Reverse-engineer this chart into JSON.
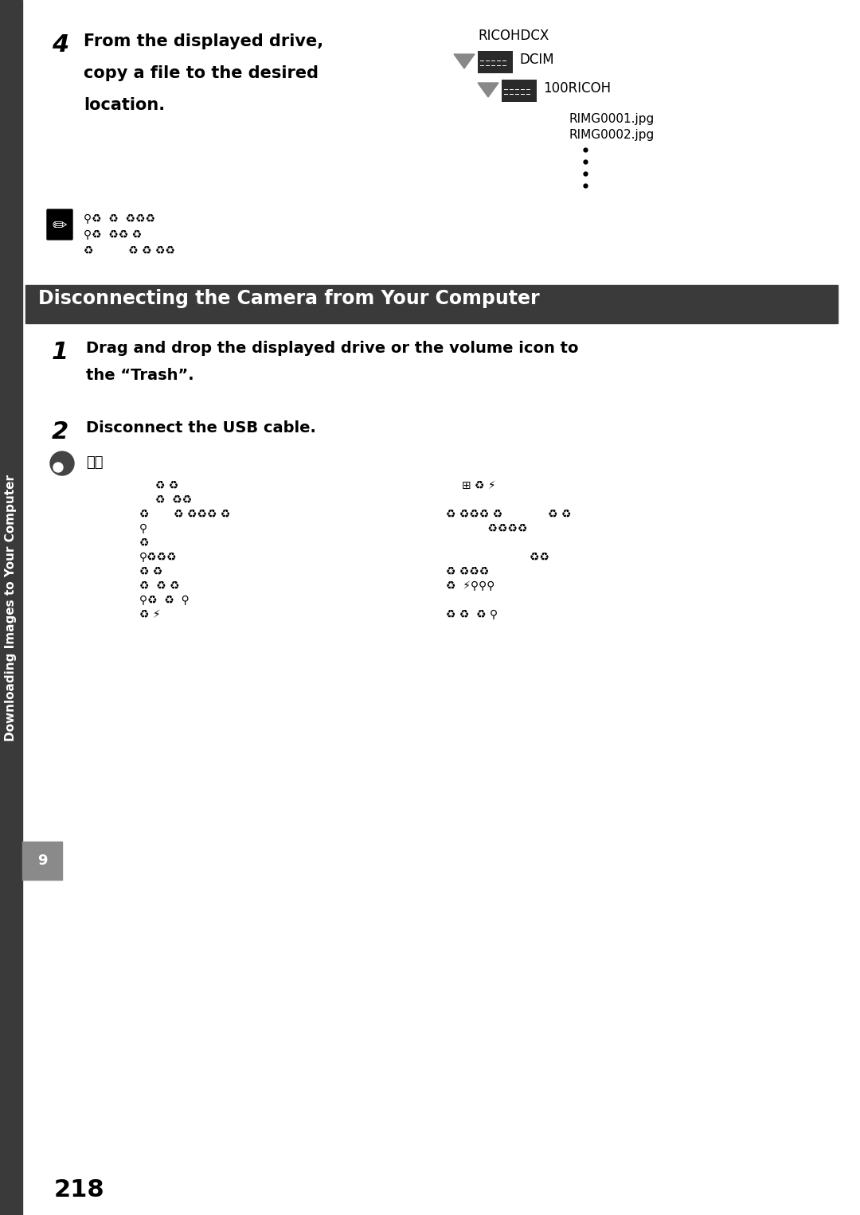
{
  "bg_color": "#ffffff",
  "page_number": "218",
  "sidebar_text": "Downloading Images to Your Computer",
  "sidebar_bg": "#3a3a3a",
  "sidebar_tab_bg": "#8a8a8a",
  "sidebar_tab_text": "9",
  "section_header": "Disconnecting the Camera from Your Computer",
  "section_header_bg": "#3a3a3a",
  "section_header_color": "#ffffff",
  "step4_text_line1": "From the displayed drive,",
  "step4_text_line2": "copy a file to the desired",
  "step4_text_line3": "location.",
  "tree_label1": "RICOHDCX",
  "tree_label2": "DCIM",
  "tree_label3": "100RICOH",
  "tree_label4": "RIMG0001.jpg",
  "tree_label5": "RIMG0002.jpg",
  "step1_text_line1": "Drag and drop the displayed drive or the volume icon to",
  "step1_text_line2": "the “Trash”.",
  "step2_text": "Disconnect the USB cable.",
  "note_lang": "言語",
  "font_size_body": 14,
  "font_size_tree": 11,
  "font_size_header": 17,
  "font_size_page": 22,
  "font_size_sidebar": 11
}
